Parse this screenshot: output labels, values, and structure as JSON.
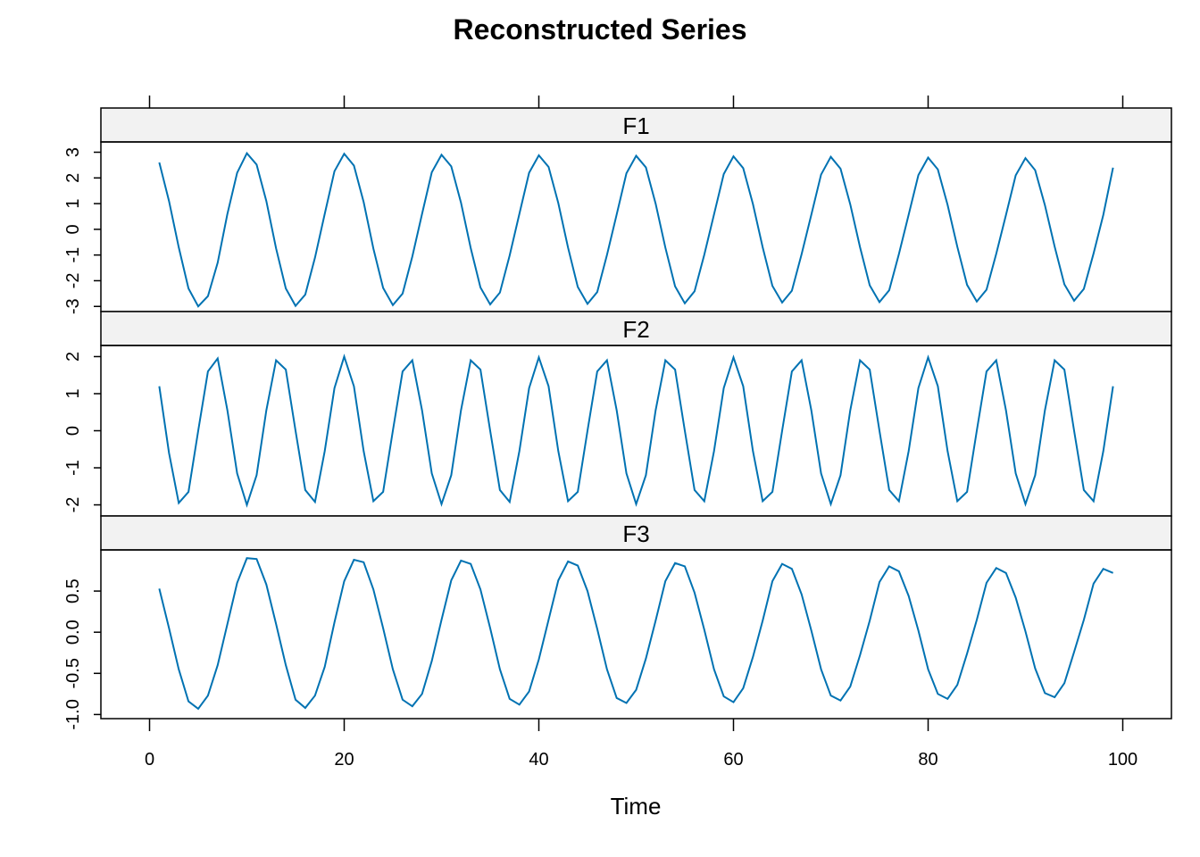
{
  "chart_data": {
    "type": "line",
    "title": "Reconstructed Series",
    "xlabel": "Time",
    "xlim": [
      -5,
      105
    ],
    "x_ticks": [
      0,
      20,
      40,
      60,
      80,
      100
    ],
    "line_color": "#0072b2",
    "strip_color": "#f2f2f2",
    "panels": [
      {
        "name": "F1",
        "ylim": [
          -3.2,
          3.4
        ],
        "y_ticks": [
          -3,
          -2,
          -1,
          0,
          1,
          2,
          3
        ],
        "y_tick_labels": [
          "-3",
          "-2",
          "-1",
          "0",
          "1",
          "2",
          "3"
        ],
        "x": [
          1,
          2,
          3,
          4,
          5,
          6,
          7,
          8,
          9,
          10,
          11,
          12,
          13,
          14,
          15,
          16,
          17,
          18,
          19,
          20,
          21,
          22,
          23,
          24,
          25,
          26,
          27,
          28,
          29,
          30,
          31,
          32,
          33,
          34,
          35,
          36,
          37,
          38,
          39,
          40,
          41,
          42,
          43,
          44,
          45,
          46,
          47,
          48,
          49,
          50,
          51,
          52,
          53,
          54,
          55,
          56,
          57,
          58,
          59,
          60,
          61,
          62,
          63,
          64,
          65,
          66,
          67,
          68,
          69,
          70,
          71,
          72,
          73,
          74,
          75,
          76,
          77,
          78,
          79,
          80,
          81,
          82,
          83,
          84,
          85,
          86,
          87,
          88,
          89,
          90,
          91,
          92,
          93,
          94,
          95,
          96,
          97,
          98,
          99
        ],
        "values": [
          2.6,
          1.1,
          -0.7,
          -2.3,
          -3.0,
          -2.6,
          -1.3,
          0.6,
          2.2,
          2.96,
          2.52,
          1.1,
          -0.74,
          -2.3,
          -2.98,
          -2.54,
          -1.1,
          0.6,
          2.26,
          2.94,
          2.48,
          1.06,
          -0.75,
          -2.28,
          -2.95,
          -2.5,
          -1.06,
          0.6,
          2.22,
          2.9,
          2.45,
          1.04,
          -0.73,
          -2.26,
          -2.92,
          -2.46,
          -1.02,
          0.6,
          2.2,
          2.88,
          2.43,
          1.02,
          -0.71,
          -2.24,
          -2.9,
          -2.44,
          -1.0,
          0.58,
          2.18,
          2.86,
          2.41,
          1.0,
          -0.71,
          -2.22,
          -2.88,
          -2.41,
          -0.99,
          0.58,
          2.15,
          2.84,
          2.38,
          0.98,
          -0.7,
          -2.2,
          -2.85,
          -2.39,
          -0.97,
          0.57,
          2.13,
          2.82,
          2.36,
          0.97,
          -0.69,
          -2.18,
          -2.83,
          -2.37,
          -0.96,
          0.57,
          2.11,
          2.79,
          2.33,
          0.95,
          -0.68,
          -2.16,
          -2.81,
          -2.35,
          -0.95,
          0.56,
          2.1,
          2.77,
          2.3,
          0.94,
          -0.67,
          -2.14,
          -2.78,
          -2.32,
          -0.94,
          0.56,
          2.4
        ]
      },
      {
        "name": "F2",
        "ylim": [
          -2.3,
          2.3
        ],
        "y_ticks": [
          -2,
          -1,
          0,
          1,
          2
        ],
        "y_tick_labels": [
          "-2",
          "-1",
          "0",
          "1",
          "2"
        ],
        "x": [
          1,
          2,
          3,
          4,
          5,
          6,
          7,
          8,
          9,
          10,
          11,
          12,
          13,
          14,
          15,
          16,
          17,
          18,
          19,
          20,
          21,
          22,
          23,
          24,
          25,
          26,
          27,
          28,
          29,
          30,
          31,
          32,
          33,
          34,
          35,
          36,
          37,
          38,
          39,
          40,
          41,
          42,
          43,
          44,
          45,
          46,
          47,
          48,
          49,
          50,
          51,
          52,
          53,
          54,
          55,
          56,
          57,
          58,
          59,
          60,
          61,
          62,
          63,
          64,
          65,
          66,
          67,
          68,
          69,
          70,
          71,
          72,
          73,
          74,
          75,
          76,
          77,
          78,
          79,
          80,
          81,
          82,
          83,
          84,
          85,
          86,
          87,
          88,
          89,
          90,
          91,
          92,
          93,
          94,
          95,
          96,
          97,
          98,
          99
        ],
        "values": [
          1.2,
          -0.6,
          -1.95,
          -1.65,
          0.0,
          1.6,
          1.95,
          0.55,
          -1.15,
          -2.0,
          -1.2,
          0.55,
          1.9,
          1.65,
          0.0,
          -1.6,
          -1.92,
          -0.55,
          1.15,
          2.0,
          1.2,
          -0.55,
          -1.9,
          -1.65,
          0.0,
          1.6,
          1.9,
          0.55,
          -1.15,
          -1.98,
          -1.2,
          0.55,
          1.9,
          1.65,
          0.0,
          -1.6,
          -1.92,
          -0.55,
          1.15,
          1.98,
          1.2,
          -0.55,
          -1.9,
          -1.65,
          0.0,
          1.6,
          1.9,
          0.55,
          -1.15,
          -1.98,
          -1.2,
          0.55,
          1.9,
          1.65,
          0.0,
          -1.6,
          -1.9,
          -0.55,
          1.15,
          1.98,
          1.2,
          -0.55,
          -1.9,
          -1.65,
          0.0,
          1.6,
          1.9,
          0.55,
          -1.15,
          -1.98,
          -1.2,
          0.55,
          1.9,
          1.65,
          0.0,
          -1.6,
          -1.9,
          -0.55,
          1.15,
          1.98,
          1.2,
          -0.55,
          -1.9,
          -1.65,
          0.0,
          1.6,
          1.9,
          0.55,
          -1.15,
          -1.98,
          -1.2,
          0.55,
          1.9,
          1.65,
          0.0,
          -1.6,
          -1.9,
          -0.55,
          1.2
        ]
      },
      {
        "name": "F3",
        "ylim": [
          -1.05,
          1.0
        ],
        "y_ticks": [
          -1.0,
          -0.5,
          0.0,
          0.5
        ],
        "y_tick_labels": [
          "-1.0",
          "-0.5",
          "0.0",
          "0.5"
        ],
        "x": [
          1,
          2,
          3,
          4,
          5,
          6,
          7,
          8,
          9,
          10,
          11,
          12,
          13,
          14,
          15,
          16,
          17,
          18,
          19,
          20,
          21,
          22,
          23,
          24,
          25,
          26,
          27,
          28,
          29,
          30,
          31,
          32,
          33,
          34,
          35,
          36,
          37,
          38,
          39,
          40,
          41,
          42,
          43,
          44,
          45,
          46,
          47,
          48,
          49,
          50,
          51,
          52,
          53,
          54,
          55,
          56,
          57,
          58,
          59,
          60,
          61,
          62,
          63,
          64,
          65,
          66,
          67,
          68,
          69,
          70,
          71,
          72,
          73,
          74,
          75,
          76,
          77,
          78,
          79,
          80,
          81,
          82,
          83,
          84,
          85,
          86,
          87,
          88,
          89,
          90,
          91,
          92,
          93,
          94,
          95,
          96,
          97,
          98,
          99
        ],
        "values": [
          0.53,
          0.05,
          -0.45,
          -0.84,
          -0.93,
          -0.77,
          -0.4,
          0.1,
          0.6,
          0.9,
          0.89,
          0.58,
          0.1,
          -0.4,
          -0.82,
          -0.92,
          -0.77,
          -0.42,
          0.12,
          0.62,
          0.88,
          0.85,
          0.52,
          0.05,
          -0.45,
          -0.82,
          -0.9,
          -0.75,
          -0.35,
          0.15,
          0.63,
          0.87,
          0.83,
          0.52,
          0.05,
          -0.45,
          -0.81,
          -0.88,
          -0.72,
          -0.33,
          0.15,
          0.63,
          0.86,
          0.81,
          0.5,
          0.04,
          -0.45,
          -0.8,
          -0.86,
          -0.7,
          -0.32,
          0.14,
          0.62,
          0.84,
          0.8,
          0.48,
          0.03,
          -0.45,
          -0.78,
          -0.85,
          -0.68,
          -0.3,
          0.14,
          0.62,
          0.83,
          0.77,
          0.46,
          0.02,
          -0.45,
          -0.77,
          -0.83,
          -0.66,
          -0.28,
          0.14,
          0.61,
          0.8,
          0.74,
          0.44,
          0.02,
          -0.45,
          -0.75,
          -0.81,
          -0.64,
          -0.26,
          0.15,
          0.6,
          0.78,
          0.72,
          0.42,
          0.01,
          -0.44,
          -0.74,
          -0.79,
          -0.62,
          -0.24,
          0.15,
          0.59,
          0.77,
          0.72
        ]
      }
    ]
  }
}
